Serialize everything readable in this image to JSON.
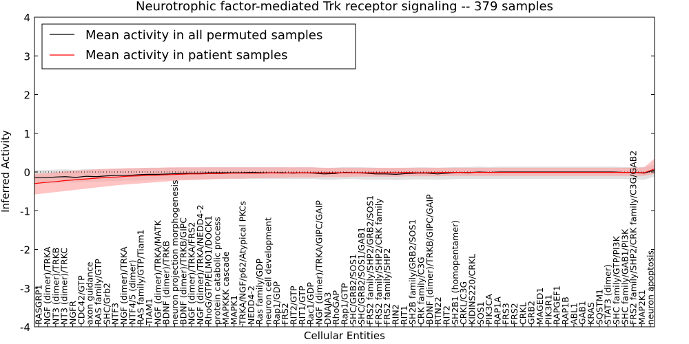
{
  "chart_data": {
    "type": "line",
    "title": "Neurotrophic factor-mediated Trk receptor signaling -- 379 samples",
    "xlabel": "Cellular Entities",
    "ylabel": "Inferred Activity",
    "ylim": [
      -4,
      4
    ],
    "yticks": [
      -4,
      -3,
      -2,
      -1,
      0,
      1,
      2,
      3,
      4
    ],
    "legend": {
      "position": "top-left",
      "entries": [
        {
          "label": "Mean activity in all permuted samples",
          "color": "#000000"
        },
        {
          "label": "Mean activity in patient samples",
          "color": "#ff0000"
        }
      ]
    },
    "colors": {
      "permuted_line": "#000000",
      "permuted_band": "#d9d9d9",
      "patient_line": "#ff0000",
      "patient_band": "#ff9c9c"
    },
    "categories": [
      "RASGRP1",
      "NGF (dimer)/TRKA",
      "NT3 (dimer)/TRKB",
      "NT3 (dimer)/TRKC",
      "NGFR",
      "CDC42/GTP",
      "axon guidance",
      "RAS family/GTP",
      "SHC/Grb2",
      "NTF3",
      "NGF (dimer)/TRKA",
      "NTF4/5 (dimer)",
      "RAS family/GTP/Tiam1",
      "TIAM1",
      "NGF (dimer)/TRKA/MATK",
      "BDNF (dimer)/TRKB",
      "neuron projection morphogenesis",
      "BDNF (dimer)/TRKB/GIPC",
      "NGF (dimer)/TRKA/FRS2",
      "NGF (dimer)/TRKA/NEDD4-2",
      "RhoG/GTP/ELMO1/DOCK1",
      "protein catabolic process",
      "MAPKKK cascade",
      "MAPK1",
      "TRKA/NGF/p62/Atypical PKCs",
      "NEDD4-2",
      "Ras family/GDP",
      "neuron cell development",
      "Rap1/GDP",
      "FRS2",
      "RIT2/GTP",
      "RIT1/GTP",
      "Rac1/GDP",
      "NGF (dimer)/TRKA/GIPC/GAIP",
      "DNAJA3",
      "RhoGAP",
      "Rap1/GTP",
      "SHC/GRB2/SOS1",
      "SHC/GRB2/SOS1/GAB1",
      "FRS2 family/SHP2/GRB2/SOS1",
      "FRS2 family/SHP2/CRK family",
      "FRS2 family/SHP2",
      "RIN2",
      "RIT1",
      "SH2B family/GRB2/SOS1",
      "CRK family/C3G",
      "BDNF (dimer)/TRKB/GIPC/GAIP",
      "RTN22",
      "RIT2",
      "SH2B1 (homopentamer)",
      "CRKL/C3G",
      "KIDINS220/CRKL",
      "SOS1",
      "PIK3CA",
      "RAP1A",
      "FRS3",
      "FRS2",
      "CRKL",
      "GRB2",
      "MAGED1",
      "PIK3R1",
      "RAPGEF1",
      "RAP1B",
      "ABL1",
      "GAB1",
      "KRAS",
      "SQSTM1",
      "STAT3 (dimer)",
      "SHC family/GTP/PI3K",
      "SHC family/GAB1/PI3K",
      "FRS2 family/SHP2/CRK family/C3G/GAB2",
      "MAP2K1",
      "neuron apoptosis"
    ],
    "series": [
      {
        "name": "Mean activity in all permuted samples",
        "x": [
          0,
          3,
          6,
          9,
          12,
          15,
          18,
          21,
          24,
          27,
          30,
          33,
          36,
          39,
          42,
          45,
          48,
          51,
          54,
          57,
          60,
          63,
          66,
          69,
          72,
          75,
          78,
          81,
          84,
          87,
          90,
          93,
          96,
          99,
          102,
          105,
          108,
          111,
          114,
          117,
          120,
          123,
          126,
          129,
          132,
          135,
          138,
          141,
          144,
          147,
          150,
          153,
          156,
          159,
          162,
          165,
          168,
          171,
          174,
          177,
          180
        ],
        "y": [
          -0.15,
          -0.15,
          -0.13,
          -0.12,
          -0.14,
          -0.11,
          -0.12,
          -0.1,
          -0.09,
          -0.09,
          -0.07,
          -0.06,
          -0.06,
          -0.05,
          -0.04,
          -0.03,
          -0.03,
          -0.02,
          -0.02,
          -0.02,
          -0.02,
          -0.01,
          -0.02,
          -0.02,
          -0.02,
          -0.03,
          -0.02,
          -0.03,
          -0.05,
          -0.04,
          -0.01,
          -0.02,
          -0.03,
          -0.05,
          -0.05,
          -0.06,
          -0.04,
          -0.03,
          -0.03,
          -0.05,
          -0.03,
          -0.01,
          -0.02,
          0.0,
          -0.01,
          0.0,
          0.0,
          0.0,
          0.0,
          0.0,
          0.0,
          0.0,
          0.0,
          0.0,
          0.0,
          0.0,
          0.0,
          -0.01,
          -0.01,
          -0.03,
          0.05
        ],
        "lower": [
          -0.3,
          -0.3,
          -0.28,
          -0.27,
          -0.27,
          -0.25,
          -0.25,
          -0.24,
          -0.23,
          -0.22,
          -0.22,
          -0.21,
          -0.2,
          -0.2,
          -0.19,
          -0.19,
          -0.19,
          -0.18,
          -0.18,
          -0.18,
          -0.18,
          -0.18,
          -0.18,
          -0.18,
          -0.18,
          -0.18,
          -0.18,
          -0.18,
          -0.2,
          -0.2,
          -0.18,
          -0.18,
          -0.2,
          -0.2,
          -0.2,
          -0.21,
          -0.2,
          -0.19,
          -0.19,
          -0.2,
          -0.19,
          -0.18,
          -0.18,
          -0.18,
          -0.18,
          -0.18,
          -0.18,
          -0.18,
          -0.18,
          -0.18,
          -0.18,
          -0.18,
          -0.18,
          -0.18,
          -0.18,
          -0.18,
          -0.18,
          -0.18,
          -0.18,
          -0.2,
          -0.12
        ],
        "upper": [
          0.05,
          0.05,
          0.06,
          0.07,
          0.05,
          0.08,
          0.07,
          0.08,
          0.09,
          0.09,
          0.1,
          0.11,
          0.11,
          0.11,
          0.12,
          0.12,
          0.12,
          0.13,
          0.13,
          0.13,
          0.13,
          0.13,
          0.13,
          0.13,
          0.13,
          0.12,
          0.13,
          0.12,
          0.1,
          0.11,
          0.13,
          0.13,
          0.12,
          0.11,
          0.1,
          0.1,
          0.11,
          0.12,
          0.12,
          0.11,
          0.12,
          0.13,
          0.13,
          0.14,
          0.13,
          0.14,
          0.14,
          0.14,
          0.14,
          0.14,
          0.14,
          0.14,
          0.14,
          0.14,
          0.14,
          0.14,
          0.14,
          0.13,
          0.13,
          0.13,
          0.2
        ]
      },
      {
        "name": "Mean activity in patient samples",
        "x": [
          0,
          3,
          6,
          9,
          12,
          15,
          18,
          21,
          24,
          27,
          30,
          33,
          36,
          39,
          42,
          45,
          48,
          51,
          54,
          57,
          60,
          63,
          66,
          69,
          72,
          75,
          78,
          81,
          84,
          87,
          90,
          93,
          96,
          99,
          102,
          105,
          108,
          111,
          114,
          117,
          120,
          123,
          126,
          129,
          132,
          135,
          138,
          141,
          144,
          147,
          150,
          153,
          156,
          159,
          162,
          165,
          168,
          171,
          174,
          177,
          180
        ],
        "y": [
          -0.3,
          -0.27,
          -0.25,
          -0.22,
          -0.2,
          -0.18,
          -0.16,
          -0.14,
          -0.13,
          -0.11,
          -0.1,
          -0.09,
          -0.08,
          -0.07,
          -0.06,
          -0.05,
          -0.05,
          -0.04,
          -0.04,
          -0.03,
          -0.03,
          -0.03,
          -0.03,
          -0.02,
          -0.03,
          -0.02,
          -0.02,
          -0.02,
          -0.02,
          -0.02,
          -0.02,
          -0.02,
          -0.02,
          -0.02,
          -0.02,
          -0.02,
          -0.01,
          -0.02,
          -0.02,
          -0.01,
          -0.01,
          -0.01,
          -0.01,
          -0.01,
          -0.01,
          -0.01,
          -0.01,
          -0.01,
          -0.01,
          -0.01,
          -0.01,
          -0.01,
          -0.01,
          -0.01,
          -0.01,
          -0.01,
          -0.01,
          -0.01,
          -0.01,
          -0.02,
          0.08
        ],
        "lower": [
          -0.58,
          -0.55,
          -0.52,
          -0.49,
          -0.46,
          -0.43,
          -0.4,
          -0.37,
          -0.34,
          -0.32,
          -0.3,
          -0.28,
          -0.26,
          -0.24,
          -0.22,
          -0.21,
          -0.2,
          -0.19,
          -0.18,
          -0.17,
          -0.17,
          -0.16,
          -0.16,
          -0.15,
          -0.15,
          -0.14,
          -0.14,
          -0.14,
          -0.13,
          -0.13,
          -0.13,
          -0.12,
          -0.12,
          -0.12,
          -0.12,
          -0.12,
          -0.11,
          -0.11,
          -0.11,
          -0.11,
          -0.1,
          -0.1,
          -0.1,
          -0.1,
          -0.1,
          -0.1,
          -0.1,
          -0.1,
          -0.1,
          -0.1,
          -0.1,
          -0.1,
          -0.1,
          -0.1,
          -0.1,
          -0.1,
          -0.1,
          -0.1,
          -0.1,
          -0.1,
          -0.05
        ],
        "upper": [
          -0.05,
          -0.03,
          -0.01,
          0.02,
          0.04,
          0.05,
          0.07,
          0.08,
          0.09,
          0.1,
          0.1,
          0.11,
          0.11,
          0.12,
          0.12,
          0.12,
          0.12,
          0.12,
          0.12,
          0.12,
          0.12,
          0.12,
          0.12,
          0.12,
          0.12,
          0.12,
          0.12,
          0.12,
          0.11,
          0.11,
          0.11,
          0.11,
          0.11,
          0.11,
          0.11,
          0.11,
          0.11,
          0.11,
          0.11,
          0.11,
          0.11,
          0.11,
          0.11,
          0.11,
          0.11,
          0.11,
          0.11,
          0.11,
          0.11,
          0.11,
          0.11,
          0.11,
          0.11,
          0.11,
          0.11,
          0.11,
          0.11,
          0.11,
          0.11,
          0.12,
          0.35
        ]
      }
    ],
    "x_range": [
      0,
      180
    ]
  }
}
